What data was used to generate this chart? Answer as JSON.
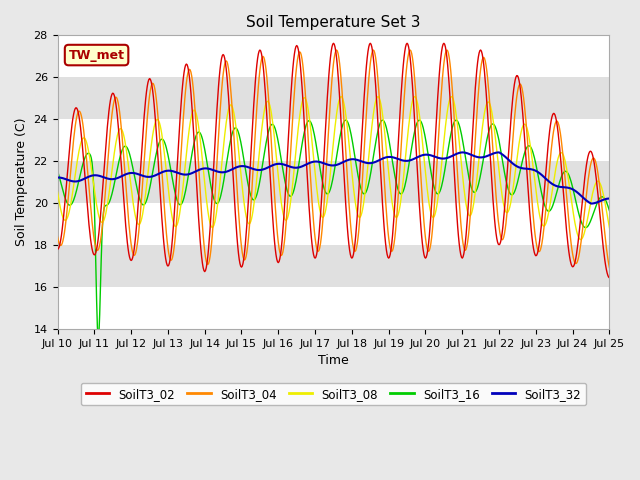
{
  "title": "Soil Temperature Set 3",
  "xlabel": "Time",
  "ylabel": "Soil Temperature (C)",
  "ylim": [
    14,
    28
  ],
  "fig_facecolor": "#e8e8e8",
  "plot_facecolor": "#ffffff",
  "annotation_text": "TW_met",
  "annotation_bg": "#ffffcc",
  "annotation_border": "#aa0000",
  "series_colors": {
    "SoilT3_02": "#dd0000",
    "SoilT3_04": "#ff8800",
    "SoilT3_08": "#eeee00",
    "SoilT3_16": "#00cc00",
    "SoilT3_32": "#0000bb"
  },
  "band_colors": [
    "#ffffff",
    "#e0e0e0"
  ],
  "x_tick_labels": [
    "Jul 10",
    "Jul 11",
    "Jul 12",
    "Jul 13",
    "Jul 14",
    "Jul 15",
    "Jul 16",
    "Jul 17",
    "Jul 18",
    "Jul 19",
    "Jul 20",
    "Jul 21",
    "Jul 22",
    "Jul 23",
    "Jul 24",
    "Jul 25"
  ],
  "x_tick_positions": [
    0,
    24,
    48,
    72,
    96,
    120,
    144,
    168,
    192,
    216,
    240,
    264,
    288,
    312,
    336,
    360
  ],
  "num_points": 721,
  "legend_entries": [
    "SoilT3_02",
    "SoilT3_04",
    "SoilT3_08",
    "SoilT3_16",
    "SoilT3_32"
  ]
}
